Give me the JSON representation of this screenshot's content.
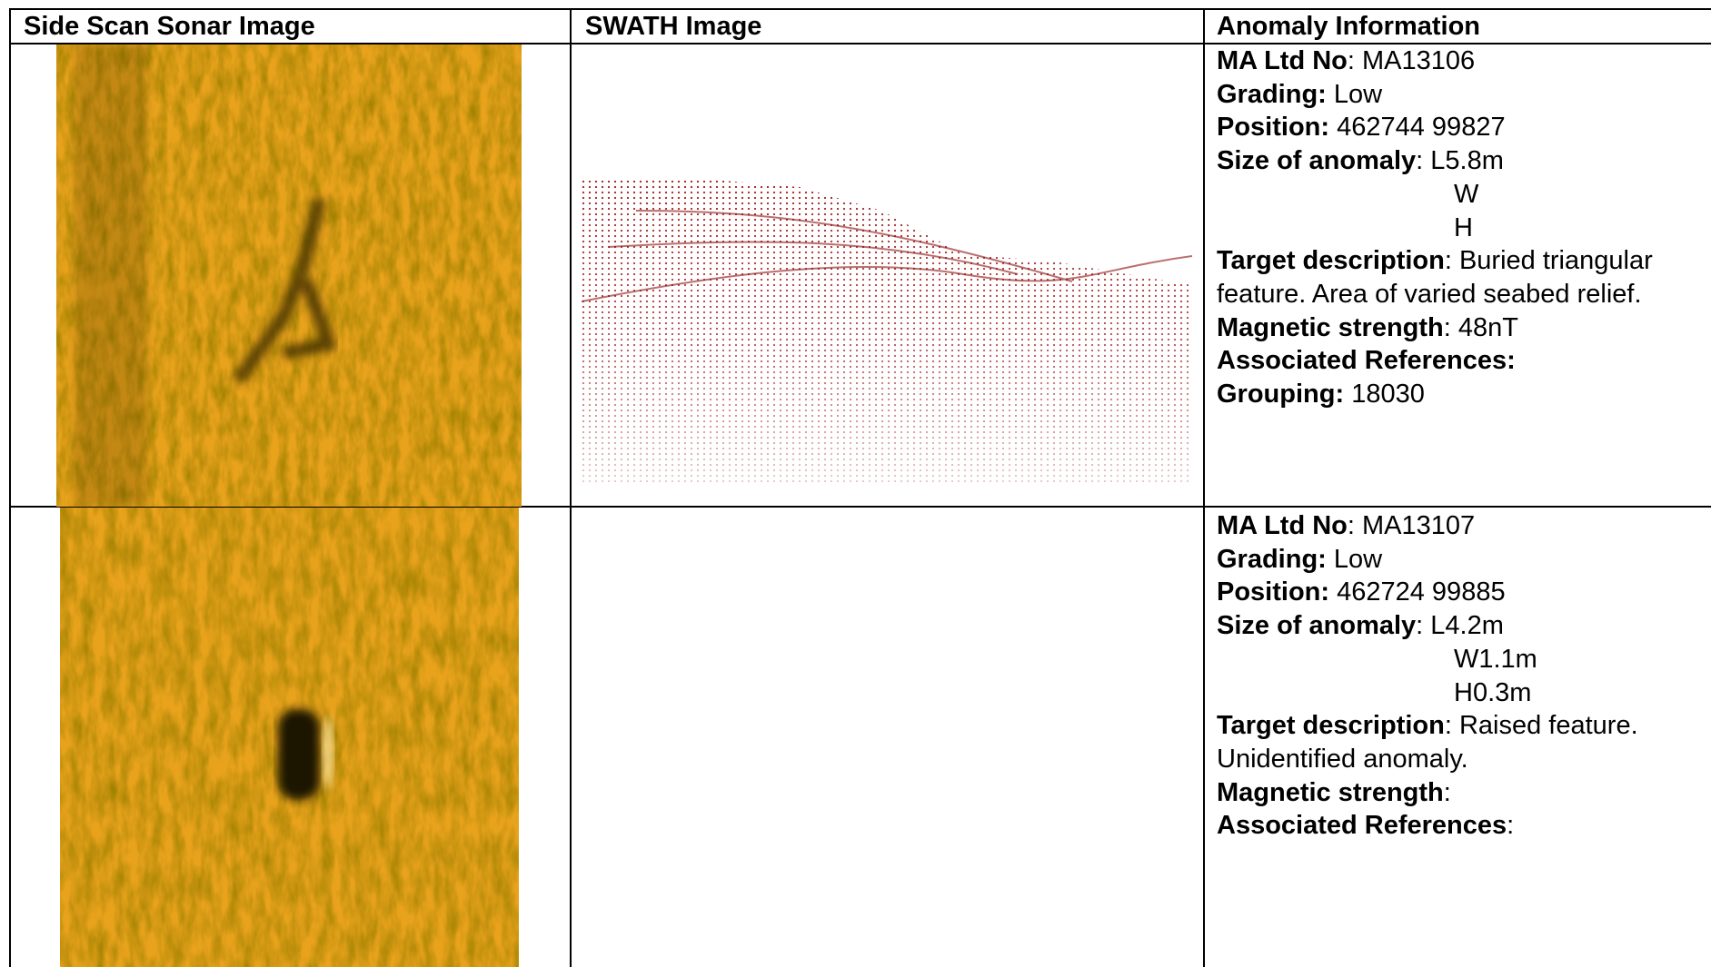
{
  "table": {
    "headers": [
      "Side Scan Sonar Image",
      "SWATH Image",
      "Anomaly Information"
    ],
    "rows": [
      {
        "info": [
          {
            "label": "MA Ltd No",
            "value": ": MA13106"
          },
          {
            "label": "Grading:",
            "value": " Low"
          },
          {
            "label": "Position:",
            "value": " 462744 99827"
          },
          {
            "label": "Size of anomaly",
            "value": ": L5.8m"
          },
          {
            "continuation": "W"
          },
          {
            "continuation": "H"
          },
          {
            "label": "Target description",
            "value": ": Buried triangular feature. Area of varied seabed relief."
          },
          {
            "label": "Magnetic strength",
            "value": ": 48nT"
          },
          {
            "label": "Associated References:"
          },
          {
            "label": "Grouping:",
            "value": " 18030"
          }
        ]
      },
      {
        "info": [
          {
            "label": "MA Ltd No",
            "value": ": MA13107"
          },
          {
            "label": "Grading:",
            "value": " Low"
          },
          {
            "label": "Position:",
            "value": " 462724 99885"
          },
          {
            "label": "Size of anomaly",
            "value": ": L4.2m"
          },
          {
            "continuation": "W1.1m"
          },
          {
            "continuation": "H0.3m"
          },
          {
            "label": "Target description",
            "value": ": Raised feature. Unidentified anomaly."
          },
          {
            "label": "Magnetic strength",
            "value": ":"
          },
          {
            "label": "Associated References",
            "value": ":"
          }
        ]
      }
    ]
  }
}
